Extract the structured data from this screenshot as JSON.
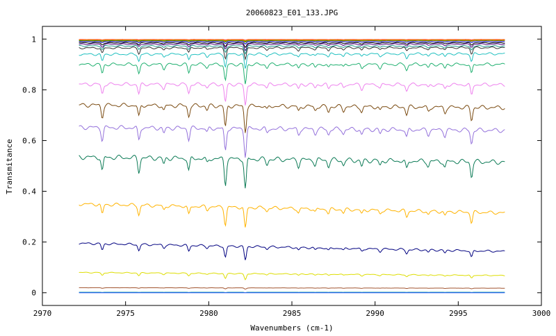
{
  "chart_data": {
    "type": "line",
    "title": "20060823_E01_133.JPG",
    "xlabel": "Wavenumbers (cm-1)",
    "ylabel": "Transmitance",
    "xlim": [
      2970,
      3000
    ],
    "ylim": [
      -0.05,
      1.05
    ],
    "x_ticks": [
      "2970",
      "2975",
      "2980",
      "2985",
      "2990",
      "2995",
      "3000"
    ],
    "y_ticks": [
      "0",
      "0.2",
      "0.4",
      "0.6",
      "0.8",
      "1"
    ],
    "grid": false,
    "legend": "none",
    "x_range": [
      2972.2,
      2997.8
    ],
    "absorption_lines": [
      {
        "x": 2973.6,
        "strength": 0.55
      },
      {
        "x": 2975.8,
        "strength": 0.55
      },
      {
        "x": 2977.3,
        "strength": 0.25
      },
      {
        "x": 2978.8,
        "strength": 0.5
      },
      {
        "x": 2979.9,
        "strength": 0.2
      },
      {
        "x": 2981.0,
        "strength": 1.0
      },
      {
        "x": 2982.2,
        "strength": 1.2
      },
      {
        "x": 2983.5,
        "strength": 0.2
      },
      {
        "x": 2985.4,
        "strength": 0.25
      },
      {
        "x": 2986.4,
        "strength": 0.2
      },
      {
        "x": 2987.2,
        "strength": 0.25
      },
      {
        "x": 2988.1,
        "strength": 0.2
      },
      {
        "x": 2989.2,
        "strength": 0.25
      },
      {
        "x": 2990.3,
        "strength": 0.2
      },
      {
        "x": 2991.9,
        "strength": 0.35
      },
      {
        "x": 2993.2,
        "strength": 0.2
      },
      {
        "x": 2994.2,
        "strength": 0.25
      },
      {
        "x": 2995.8,
        "strength": 0.6
      }
    ],
    "series": [
      {
        "color": "#ff0000",
        "level_start": 0.998,
        "level_end": 0.998,
        "depth": 0.002
      },
      {
        "color": "#00aa00",
        "level_start": 0.995,
        "level_end": 0.996,
        "depth": 0.004
      },
      {
        "color": "#ff8000",
        "level_start": 0.997,
        "level_end": 0.997,
        "depth": 0.003
      },
      {
        "color": "#808000",
        "level_start": 0.993,
        "level_end": 0.994,
        "depth": 0.005
      },
      {
        "color": "#0000cc",
        "level_start": 0.99,
        "level_end": 0.99,
        "depth": 0.008
      },
      {
        "color": "#000000",
        "level_start": 0.985,
        "level_end": 0.985,
        "depth": 0.015
      },
      {
        "color": "#4b0082",
        "level_start": 0.98,
        "level_end": 0.98,
        "depth": 0.02
      },
      {
        "color": "#1f9a8a",
        "level_start": 0.973,
        "level_end": 0.972,
        "depth": 0.025
      },
      {
        "color": "#333333",
        "level_start": 0.965,
        "level_end": 0.966,
        "depth": 0.04
      },
      {
        "color": "#20c0c0",
        "level_start": 0.94,
        "level_end": 0.942,
        "depth": 0.05
      },
      {
        "color": "#20b070",
        "level_start": 0.9,
        "level_end": 0.9,
        "depth": 0.065
      },
      {
        "color": "#ee82ee",
        "level_start": 0.822,
        "level_end": 0.82,
        "depth": 0.07
      },
      {
        "color": "#7a4a10",
        "level_start": 0.74,
        "level_end": 0.73,
        "depth": 0.085
      },
      {
        "color": "#9370db",
        "level_start": 0.652,
        "level_end": 0.64,
        "depth": 0.09
      },
      {
        "color": "#0b7a55",
        "level_start": 0.535,
        "level_end": 0.515,
        "depth": 0.1
      },
      {
        "color": "#ffb300",
        "level_start": 0.35,
        "level_end": 0.315,
        "depth": 0.07
      },
      {
        "color": "#000080",
        "level_start": 0.195,
        "level_end": 0.163,
        "depth": 0.045
      },
      {
        "color": "#dddd00",
        "level_start": 0.08,
        "level_end": 0.068,
        "depth": 0.02
      },
      {
        "color": "#a0522d",
        "level_start": 0.02,
        "level_end": 0.018,
        "depth": 0.004
      },
      {
        "color": "#009a9a",
        "level_start": 0.002,
        "level_end": 0.002,
        "depth": 0.001
      },
      {
        "color": "#3355ff",
        "level_start": 0.0,
        "level_end": 0.0,
        "depth": 0.0
      }
    ]
  }
}
